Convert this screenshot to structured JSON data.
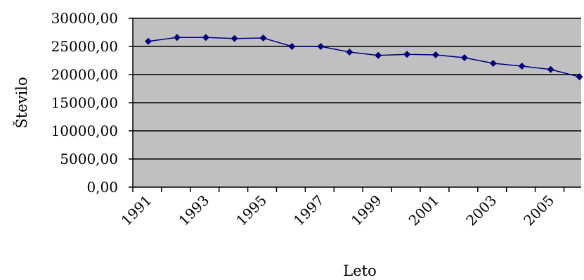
{
  "chart_data": {
    "type": "line",
    "title": "",
    "xlabel": "Leto",
    "ylabel": "Število",
    "x": [
      1991,
      1992,
      1993,
      1994,
      1995,
      1996,
      1997,
      1998,
      1999,
      2000,
      2001,
      2002,
      2003,
      2004,
      2005,
      2006
    ],
    "x_tick_labels": [
      "1991",
      "1993",
      "1995",
      "1997",
      "1999",
      "2001",
      "2003",
      "2005"
    ],
    "y_tick_labels": [
      "0,00",
      "5000,00",
      "10000,00",
      "15000,00",
      "20000,00",
      "25000,00",
      "30000,00"
    ],
    "ylim": [
      0,
      30000
    ],
    "grid": true,
    "legend": "none",
    "series": [
      {
        "values": [
          25900,
          26600,
          26600,
          26400,
          26500,
          25000,
          25000,
          24000,
          23400,
          23600,
          23500,
          23000,
          22000,
          21500,
          20900,
          19600
        ]
      }
    ],
    "colors": {
      "plot_background": "#c0c0c0",
      "line": "#000080",
      "marker": "#000080",
      "grid": "#000000"
    }
  }
}
